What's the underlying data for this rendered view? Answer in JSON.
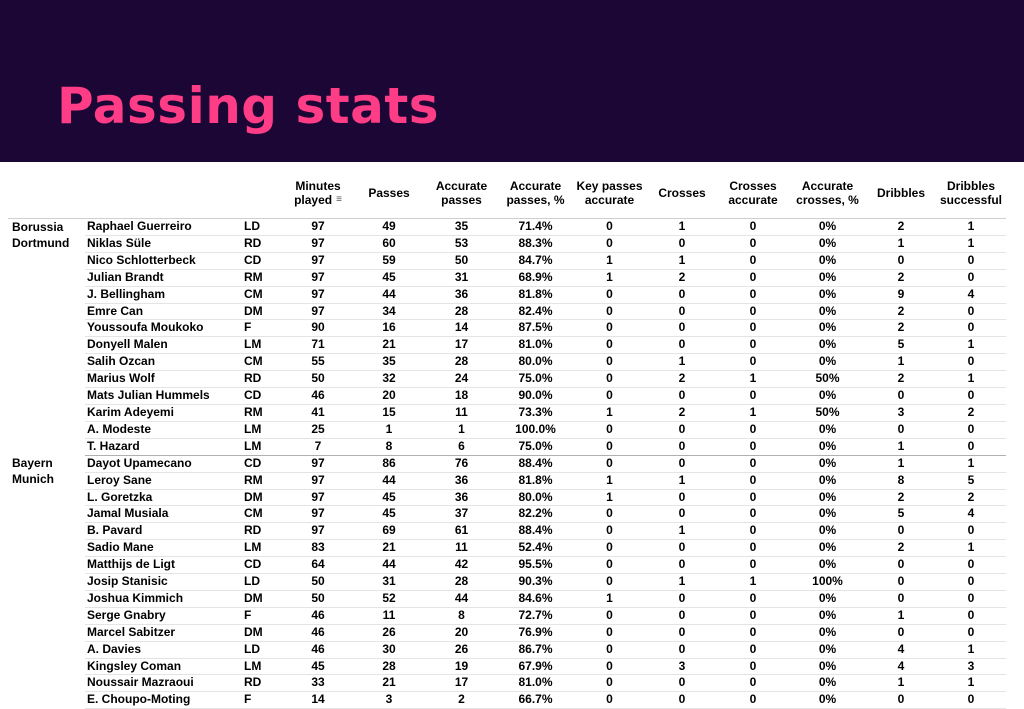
{
  "title": "Passing stats",
  "columns": {
    "minutes": "Minutes played",
    "passes": "Passes",
    "accurate_passes": "Accurate passes",
    "accurate_passes_pct": "Accurate passes, %",
    "key_passes_accurate": "Key passes accurate",
    "crosses": "Crosses",
    "crosses_accurate": "Crosses accurate",
    "accurate_crosses_pct": "Accurate crosses, %",
    "dribbles": "Dribbles",
    "dribbles_successful": "Dribbles successful"
  },
  "teams": [
    {
      "name": "Borussia Dortmund",
      "players": [
        [
          "Raphael Guerreiro",
          "LD",
          "97",
          "49",
          "35",
          "71.4%",
          "0",
          "1",
          "0",
          "0%",
          "2",
          "1"
        ],
        [
          "Niklas Süle",
          "RD",
          "97",
          "60",
          "53",
          "88.3%",
          "0",
          "0",
          "0",
          "0%",
          "1",
          "1"
        ],
        [
          "Nico Schlotterbeck",
          "CD",
          "97",
          "59",
          "50",
          "84.7%",
          "1",
          "1",
          "0",
          "0%",
          "0",
          "0"
        ],
        [
          "Julian Brandt",
          "RM",
          "97",
          "45",
          "31",
          "68.9%",
          "1",
          "2",
          "0",
          "0%",
          "2",
          "0"
        ],
        [
          "J. Bellingham",
          "CM",
          "97",
          "44",
          "36",
          "81.8%",
          "0",
          "0",
          "0",
          "0%",
          "9",
          "4"
        ],
        [
          "Emre Can",
          "DM",
          "97",
          "34",
          "28",
          "82.4%",
          "0",
          "0",
          "0",
          "0%",
          "2",
          "0"
        ],
        [
          "Youssoufa Moukoko",
          "F",
          "90",
          "16",
          "14",
          "87.5%",
          "0",
          "0",
          "0",
          "0%",
          "2",
          "0"
        ],
        [
          "Donyell Malen",
          "LM",
          "71",
          "21",
          "17",
          "81.0%",
          "0",
          "0",
          "0",
          "0%",
          "5",
          "1"
        ],
        [
          "Salih Ozcan",
          "CM",
          "55",
          "35",
          "28",
          "80.0%",
          "0",
          "1",
          "0",
          "0%",
          "1",
          "0"
        ],
        [
          "Marius Wolf",
          "RD",
          "50",
          "32",
          "24",
          "75.0%",
          "0",
          "2",
          "1",
          "50%",
          "2",
          "1"
        ],
        [
          "Mats Julian Hummels",
          "CD",
          "46",
          "20",
          "18",
          "90.0%",
          "0",
          "0",
          "0",
          "0%",
          "0",
          "0"
        ],
        [
          "Karim Adeyemi",
          "RM",
          "41",
          "15",
          "11",
          "73.3%",
          "1",
          "2",
          "1",
          "50%",
          "3",
          "2"
        ],
        [
          "A. Modeste",
          "LM",
          "25",
          "1",
          "1",
          "100.0%",
          "0",
          "0",
          "0",
          "0%",
          "0",
          "0"
        ],
        [
          "T. Hazard",
          "LM",
          "7",
          "8",
          "6",
          "75.0%",
          "0",
          "0",
          "0",
          "0%",
          "1",
          "0"
        ]
      ]
    },
    {
      "name": "Bayern Munich",
      "players": [
        [
          "Dayot Upamecano",
          "CD",
          "97",
          "86",
          "76",
          "88.4%",
          "0",
          "0",
          "0",
          "0%",
          "1",
          "1"
        ],
        [
          "Leroy Sane",
          "RM",
          "97",
          "44",
          "36",
          "81.8%",
          "1",
          "1",
          "0",
          "0%",
          "8",
          "5"
        ],
        [
          "L. Goretzka",
          "DM",
          "97",
          "45",
          "36",
          "80.0%",
          "1",
          "0",
          "0",
          "0%",
          "2",
          "2"
        ],
        [
          "Jamal Musiala",
          "CM",
          "97",
          "45",
          "37",
          "82.2%",
          "0",
          "0",
          "0",
          "0%",
          "5",
          "4"
        ],
        [
          "B. Pavard",
          "RD",
          "97",
          "69",
          "61",
          "88.4%",
          "0",
          "1",
          "0",
          "0%",
          "0",
          "0"
        ],
        [
          "Sadio Mane",
          "LM",
          "83",
          "21",
          "11",
          "52.4%",
          "0",
          "0",
          "0",
          "0%",
          "2",
          "1"
        ],
        [
          "Matthijs de Ligt",
          "CD",
          "64",
          "44",
          "42",
          "95.5%",
          "0",
          "0",
          "0",
          "0%",
          "0",
          "0"
        ],
        [
          "Josip Stanisic",
          "LD",
          "50",
          "31",
          "28",
          "90.3%",
          "0",
          "1",
          "1",
          "100%",
          "0",
          "0"
        ],
        [
          "Joshua Kimmich",
          "DM",
          "50",
          "52",
          "44",
          "84.6%",
          "1",
          "0",
          "0",
          "0%",
          "0",
          "0"
        ],
        [
          "Serge Gnabry",
          "F",
          "46",
          "11",
          "8",
          "72.7%",
          "0",
          "0",
          "0",
          "0%",
          "1",
          "0"
        ],
        [
          "Marcel Sabitzer",
          "DM",
          "46",
          "26",
          "20",
          "76.9%",
          "0",
          "0",
          "0",
          "0%",
          "0",
          "0"
        ],
        [
          "A. Davies",
          "LD",
          "46",
          "30",
          "26",
          "86.7%",
          "0",
          "0",
          "0",
          "0%",
          "4",
          "1"
        ],
        [
          "Kingsley Coman",
          "LM",
          "45",
          "28",
          "19",
          "67.9%",
          "0",
          "3",
          "0",
          "0%",
          "4",
          "3"
        ],
        [
          "Noussair Mazraoui",
          "RD",
          "33",
          "21",
          "17",
          "81.0%",
          "0",
          "0",
          "0",
          "0%",
          "1",
          "1"
        ],
        [
          "E. Choupo-Moting",
          "F",
          "14",
          "3",
          "2",
          "66.7%",
          "0",
          "0",
          "0",
          "0%",
          "0",
          "0"
        ]
      ]
    }
  ]
}
